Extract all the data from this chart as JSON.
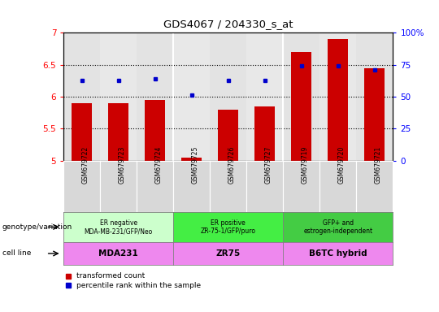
{
  "title": "GDS4067 / 204330_s_at",
  "samples": [
    "GSM679722",
    "GSM679723",
    "GSM679724",
    "GSM679725",
    "GSM679726",
    "GSM679727",
    "GSM679719",
    "GSM679720",
    "GSM679721"
  ],
  "red_values": [
    5.9,
    5.9,
    5.95,
    5.05,
    5.8,
    5.85,
    6.7,
    6.9,
    6.45
  ],
  "blue_values": [
    6.25,
    6.25,
    6.28,
    6.02,
    6.25,
    6.25,
    6.48,
    6.48,
    6.42
  ],
  "ylim": [
    5.0,
    7.0
  ],
  "yticks_left": [
    5.0,
    5.5,
    6.0,
    6.5,
    7.0
  ],
  "yticks_right": [
    0,
    25,
    50,
    75,
    100
  ],
  "dotted_lines": [
    5.5,
    6.0,
    6.5
  ],
  "bar_width": 0.55,
  "bar_color": "#cc0000",
  "dot_color": "#0000cc",
  "groups": [
    {
      "label": "ER negative\nMDA-MB-231/GFP/Neo",
      "cell": "MDA231",
      "start": 0,
      "end": 3,
      "bg_genotype": "#ccffcc",
      "bg_cell": "#ee88ee"
    },
    {
      "label": "ER positive\nZR-75-1/GFP/puro",
      "cell": "ZR75",
      "start": 3,
      "end": 6,
      "bg_genotype": "#44ee44",
      "bg_cell": "#ee88ee"
    },
    {
      "label": "GFP+ and\nestrogen-independent",
      "cell": "B6TC hybrid",
      "start": 6,
      "end": 9,
      "bg_genotype": "#44cc44",
      "bg_cell": "#ee88ee"
    }
  ],
  "legend_red": "transformed count",
  "legend_blue": "percentile rank within the sample",
  "legend_red_color": "#cc0000",
  "legend_blue_color": "#0000cc",
  "left_label_geno": "genotype/variation",
  "left_label_cell": "cell line",
  "ax_bg": "#e8e8e8",
  "xtick_bg": "#d8d8d8",
  "group_sep_color": "#ffffff"
}
